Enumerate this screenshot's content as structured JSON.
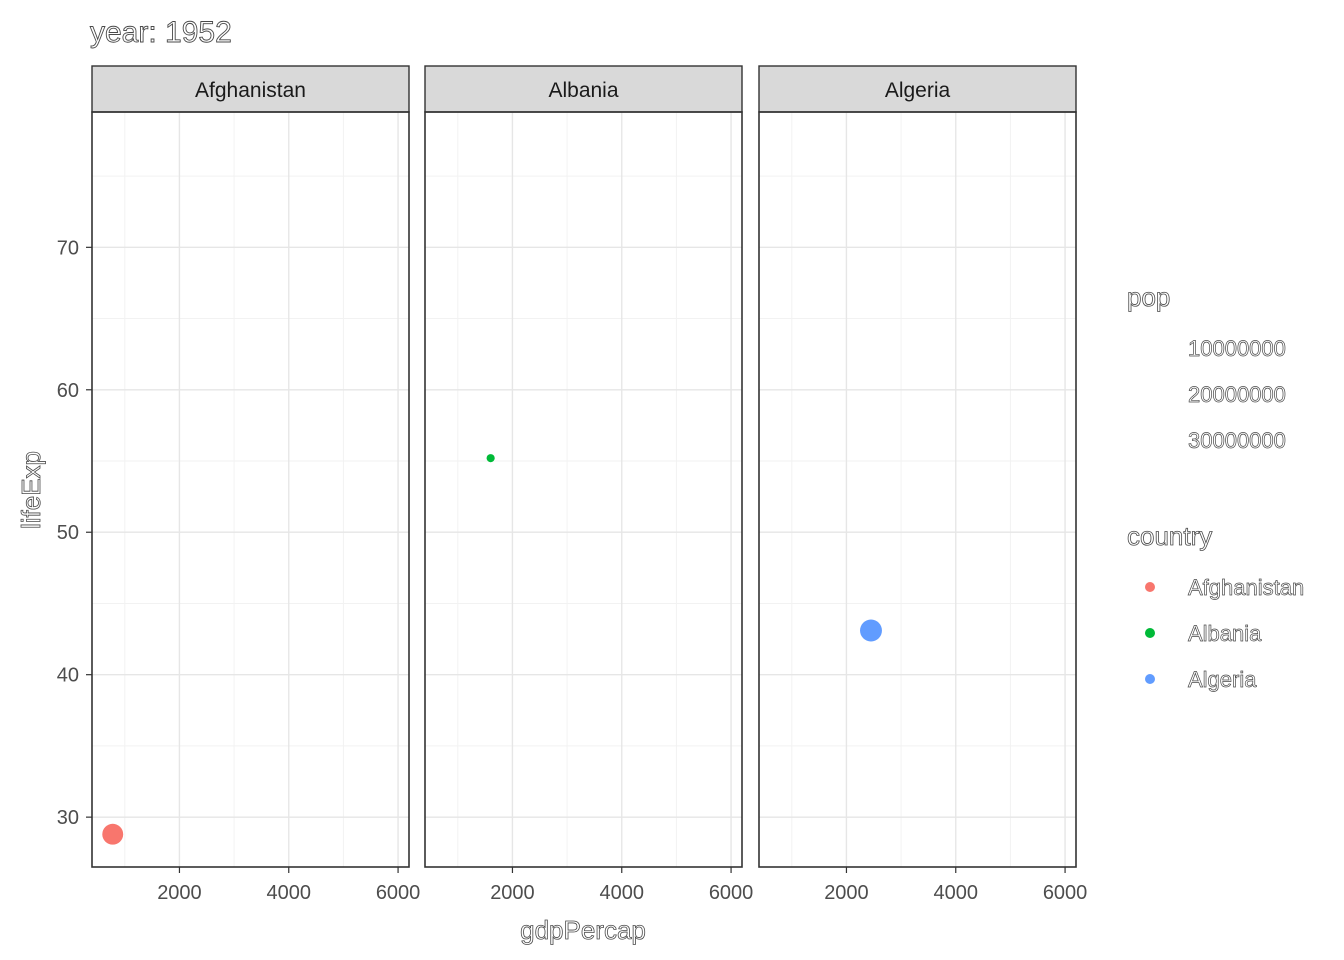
{
  "chart_data": {
    "type": "scatter",
    "title": "year: 1952",
    "xlabel": "gdpPercap",
    "ylabel": "lifeExp",
    "xlim": [
      400,
      6200
    ],
    "ylim": [
      26.5,
      79.5
    ],
    "x_ticks": [
      2000,
      4000,
      6000
    ],
    "y_ticks": [
      30,
      40,
      50,
      60,
      70
    ],
    "grid": true,
    "facets": [
      "Afghanistan",
      "Albania",
      "Algeria"
    ],
    "series": [
      {
        "name": "Afghanistan",
        "color": "#F8766D",
        "points": [
          {
            "x": 779.4,
            "y": 28.8,
            "pop": 8425333
          }
        ]
      },
      {
        "name": "Albania",
        "color": "#00BA38",
        "points": [
          {
            "x": 1601.1,
            "y": 55.2,
            "pop": 1282697
          }
        ]
      },
      {
        "name": "Algeria",
        "color": "#619CFF",
        "points": [
          {
            "x": 2449.0,
            "y": 43.1,
            "pop": 9279525
          }
        ]
      }
    ],
    "size_legend": {
      "title": "pop",
      "breaks": [
        "10000000",
        "20000000",
        "30000000"
      ]
    },
    "color_legend": {
      "title": "country",
      "entries": [
        "Afghanistan",
        "Albania",
        "Algeria"
      ],
      "colors": [
        "#F8766D",
        "#00BA38",
        "#619CFF"
      ]
    },
    "legend_position": "right"
  }
}
